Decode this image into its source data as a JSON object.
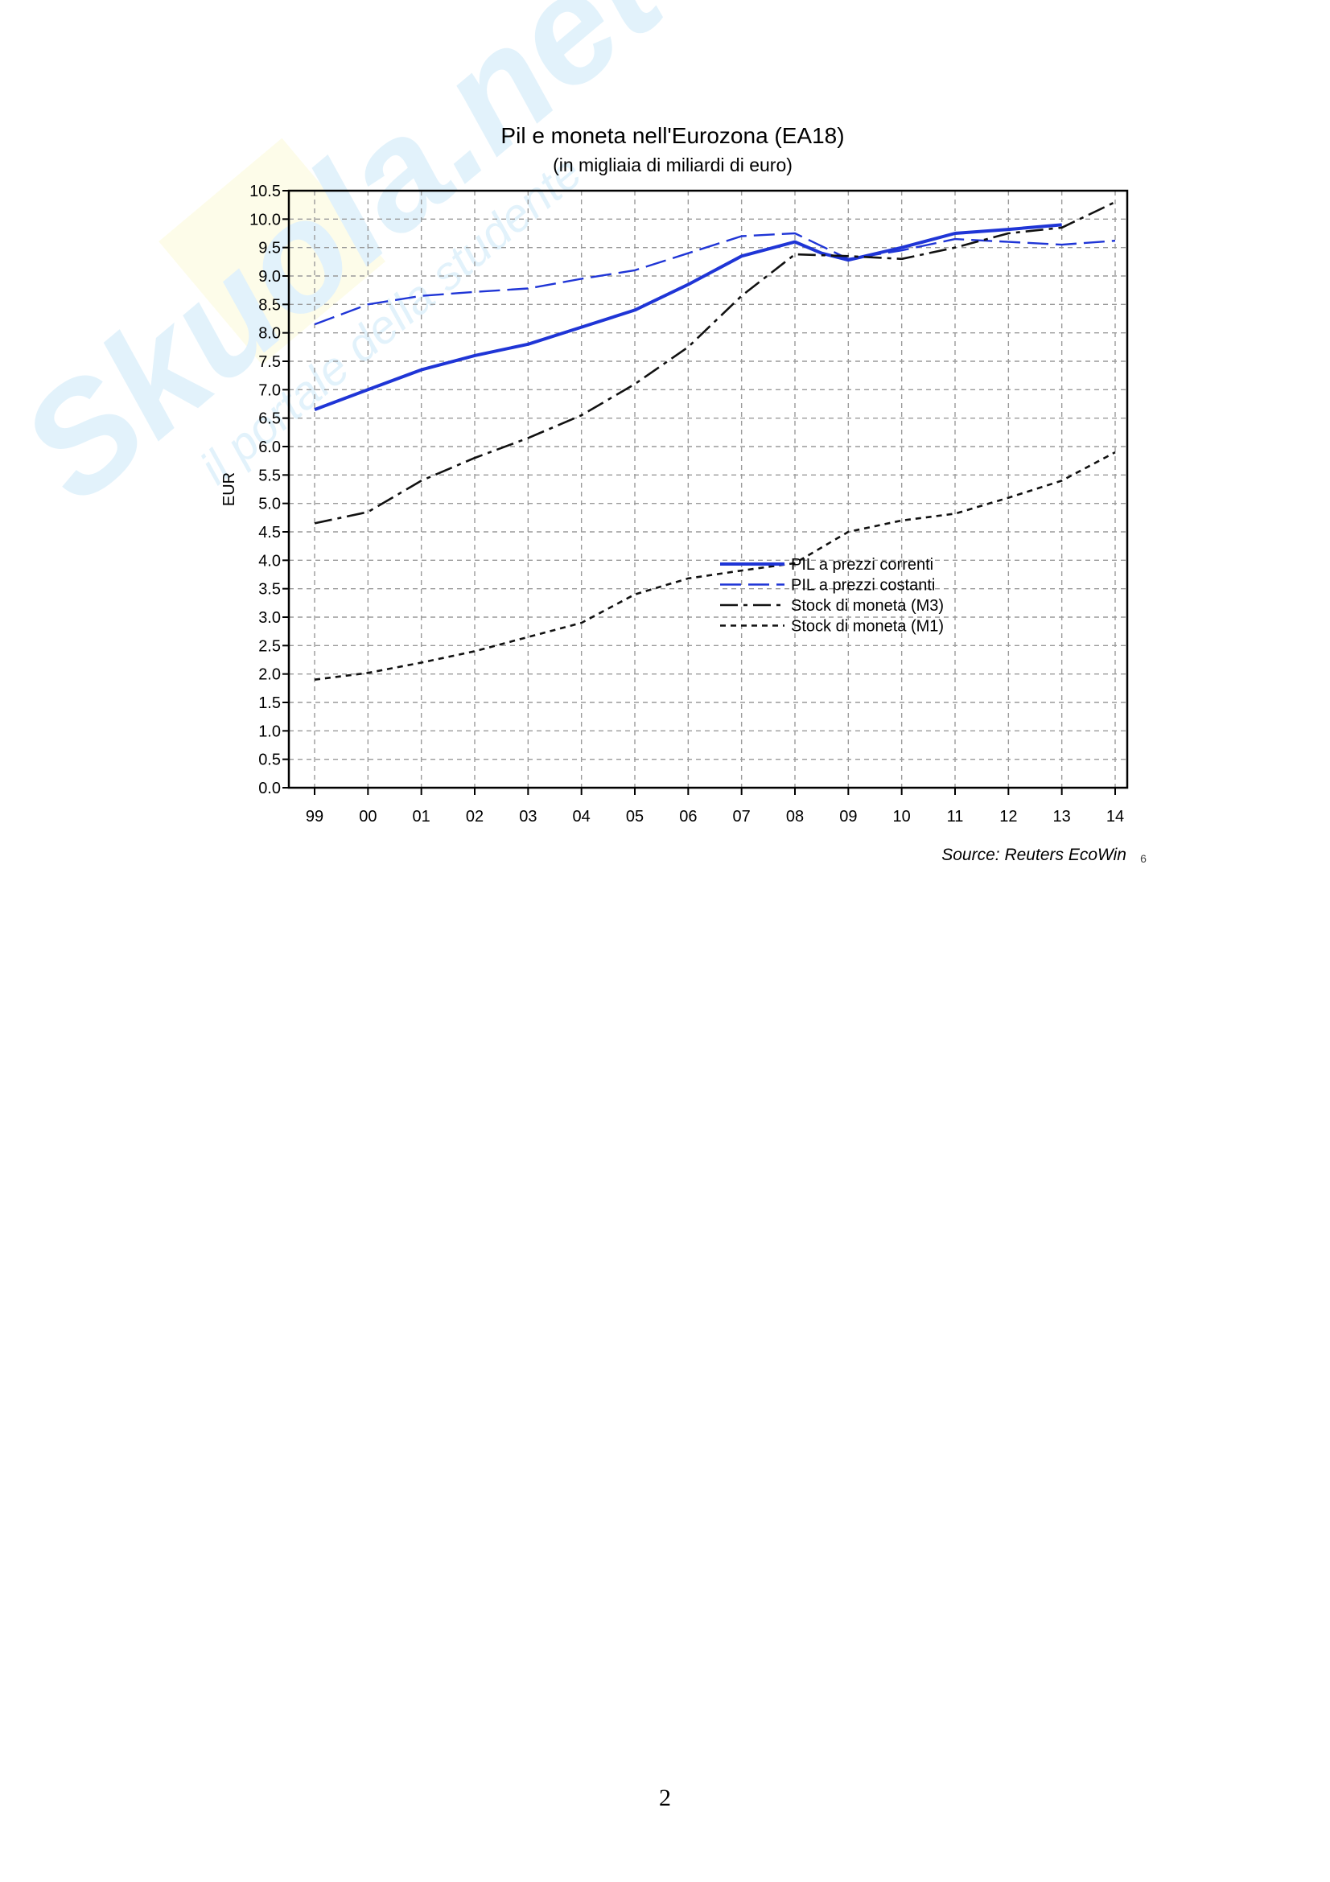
{
  "watermark": {
    "brand": "Skuola.net",
    "tagline": "il portale della studente",
    "color": "#4fb3e8",
    "accent": "#f5ef7a"
  },
  "chart_data": {
    "type": "line",
    "title": "Pil e moneta  nell'Eurozona (EA18)",
    "subtitle": "(in migliaia di miliardi di euro)",
    "ylabel": "EUR",
    "xlabel": "",
    "ylim": [
      0,
      10.5
    ],
    "yticks": [
      "0.0",
      "0.5",
      "1.0",
      "1.5",
      "2.0",
      "2.5",
      "3.0",
      "3.5",
      "4.0",
      "4.5",
      "5.0",
      "5.5",
      "6.0",
      "6.5",
      "7.0",
      "7.5",
      "8.0",
      "8.5",
      "9.0",
      "9.5",
      "10.0",
      "10.5"
    ],
    "categories": [
      "99",
      "00",
      "01",
      "02",
      "03",
      "04",
      "05",
      "06",
      "07",
      "08",
      "09",
      "10",
      "11",
      "12",
      "13",
      "14"
    ],
    "grid": true,
    "legend_position": "center",
    "series": [
      {
        "name": "PIL a prezzi correnti",
        "color": "#1f35d6",
        "style": "solid",
        "x": [
          1999,
          2000,
          2001,
          2002,
          2003,
          2004,
          2005,
          2006,
          2007,
          2008,
          2008.5,
          2009,
          2010,
          2011,
          2012,
          2013
        ],
        "values": [
          6.65,
          7.0,
          7.35,
          7.6,
          7.8,
          8.1,
          8.4,
          8.85,
          9.35,
          9.6,
          9.4,
          9.28,
          9.5,
          9.75,
          9.82,
          9.9
        ]
      },
      {
        "name": "PIL a prezzi costanti",
        "color": "#1f35d6",
        "style": "longdash",
        "x": [
          1999,
          2000,
          2001,
          2002,
          2003,
          2004,
          2005,
          2006,
          2007,
          2008,
          2009,
          2010,
          2011,
          2012,
          2013,
          2014
        ],
        "values": [
          8.15,
          8.5,
          8.65,
          8.72,
          8.78,
          8.95,
          9.1,
          9.4,
          9.7,
          9.75,
          9.3,
          9.45,
          9.65,
          9.6,
          9.55,
          9.62
        ]
      },
      {
        "name": "Stock di moneta (M3)",
        "color": "#111111",
        "style": "dashdot",
        "x": [
          1999,
          2000,
          2001,
          2002,
          2003,
          2004,
          2005,
          2006,
          2007,
          2008,
          2009,
          2010,
          2011,
          2012,
          2013,
          2014
        ],
        "values": [
          4.65,
          4.85,
          5.4,
          5.8,
          6.15,
          6.55,
          7.1,
          7.75,
          8.65,
          9.38,
          9.35,
          9.3,
          9.5,
          9.75,
          9.85,
          10.3
        ]
      },
      {
        "name": "Stock di moneta (M1)",
        "color": "#111111",
        "style": "shortdash",
        "x": [
          1999,
          2000,
          2001,
          2002,
          2003,
          2004,
          2005,
          2006,
          2007,
          2008,
          2009,
          2010,
          2011,
          2012,
          2013,
          2014
        ],
        "values": [
          1.9,
          2.02,
          2.2,
          2.4,
          2.65,
          2.9,
          3.4,
          3.68,
          3.82,
          3.95,
          4.5,
          4.7,
          4.82,
          5.1,
          5.4,
          5.9
        ]
      }
    ],
    "source": "Source: Reuters EcoWin",
    "footnote": "6"
  },
  "page": {
    "number": "2"
  }
}
